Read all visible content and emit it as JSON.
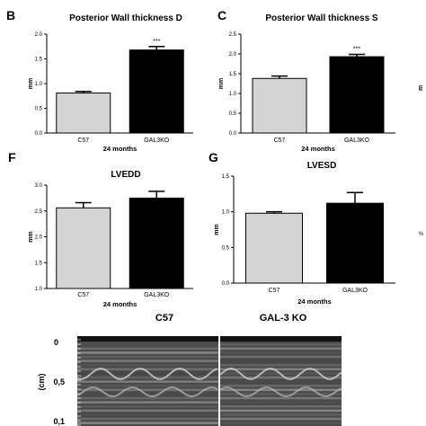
{
  "colors": {
    "c57": "#d4d4d4",
    "gal3ko": "#000000",
    "axis": "#000000",
    "echo_bg": "#4a4a4a"
  },
  "chart_data": [
    {
      "panel": "B",
      "type": "bar",
      "title": "Posterior Wall thickness D",
      "ylabel": "mm",
      "group_label": "24 months",
      "categories": [
        "C57",
        "GAL3KO"
      ],
      "values": [
        0.81,
        1.68
      ],
      "errors": [
        0.03,
        0.07
      ],
      "ylim": [
        0.0,
        2.0
      ],
      "yticks": [
        "0.0",
        "0.5",
        "1.0",
        "1.5",
        "2.0"
      ],
      "annotations": [
        {
          "category": "GAL3KO",
          "text": "***"
        }
      ]
    },
    {
      "panel": "C",
      "type": "bar",
      "title": "Posterior Wall thickness S",
      "ylabel": "mm",
      "group_label": "24 months",
      "categories": [
        "C57",
        "GAL3KO"
      ],
      "values": [
        1.38,
        1.93
      ],
      "errors": [
        0.06,
        0.06
      ],
      "ylim": [
        0.0,
        2.5
      ],
      "yticks": [
        "0.0",
        "0.5",
        "1.0",
        "1.5",
        "2.0",
        "2.5"
      ],
      "annotations": [
        {
          "category": "GAL3KO",
          "text": "***"
        }
      ]
    },
    {
      "panel": "F",
      "type": "bar",
      "title": "LVEDD",
      "ylabel": "mm",
      "group_label": "24 months",
      "categories": [
        "C57",
        "GAL3KO"
      ],
      "values": [
        2.56,
        2.75
      ],
      "errors": [
        0.1,
        0.13
      ],
      "ylim": [
        1.0,
        3.0
      ],
      "yticks": [
        "1.0",
        "1.5",
        "2.0",
        "2.5",
        "3.0"
      ],
      "annotations": []
    },
    {
      "panel": "G",
      "type": "bar",
      "title": "LVESD",
      "ylabel": "mm",
      "group_label": "24 months",
      "categories": [
        "C57",
        "GAL3KO"
      ],
      "values": [
        0.98,
        1.12
      ],
      "errors": [
        0.02,
        0.15
      ],
      "ylim": [
        0.0,
        1.5
      ],
      "yticks": [
        "0.0",
        "0.5",
        "1.0",
        "1.5"
      ],
      "annotations": []
    }
  ],
  "echo": {
    "labels": [
      "C57",
      "GAL-3 KO"
    ],
    "yaxis_label": "(cm)",
    "ticks": [
      "0",
      "0,5",
      "0,1"
    ]
  },
  "edge_fragments": [
    "%"
  ]
}
